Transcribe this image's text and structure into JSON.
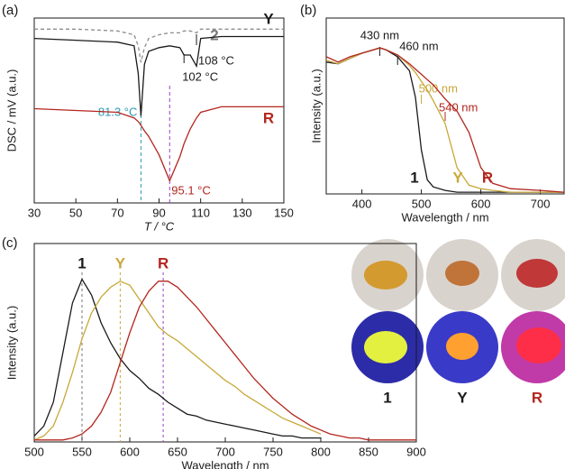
{
  "chart_data": [
    {
      "type": "line",
      "panel_label": "(a)",
      "xlabel": "T / °C",
      "ylabel": "DSC / mV (a.u.)",
      "xlim": [
        30,
        150
      ],
      "xticks": [
        30,
        50,
        70,
        90,
        110,
        130,
        150
      ],
      "ylim": [
        0,
        10
      ],
      "x": [
        30,
        50,
        70,
        78,
        80,
        81.3,
        83,
        85,
        90,
        95.1,
        100,
        102,
        105,
        108,
        110,
        120,
        150
      ],
      "series": [
        {
          "name": "2",
          "color": "#8c8c8c",
          "dashed": true,
          "values": [
            9.4,
            9.4,
            9.3,
            9.1,
            8.5,
            7.6,
            8.4,
            8.9,
            9.1,
            9.2,
            9.2,
            9.3,
            9.3,
            9.2,
            9.4,
            9.4,
            9.4
          ]
        },
        {
          "name": "Y",
          "color": "#1a1a1a",
          "dashed": false,
          "values": [
            8.9,
            8.8,
            8.7,
            8.5,
            7.0,
            4.7,
            7.5,
            8.2,
            8.4,
            8.5,
            8.4,
            8.0,
            8.0,
            7.4,
            8.9,
            9.0,
            9.0
          ]
        },
        {
          "name": "R",
          "color": "#b3261e",
          "dashed": false,
          "values": [
            5.1,
            5.0,
            4.9,
            4.6,
            4.4,
            4.2,
            3.9,
            3.6,
            2.6,
            1.2,
            2.5,
            3.2,
            4.0,
            4.6,
            4.9,
            5.2,
            5.2
          ]
        }
      ],
      "annotations": [
        {
          "text": "81.3 °C",
          "x": 81.3,
          "color": "#2a9bb5"
        },
        {
          "text": "95.1 °C",
          "x": 95.1,
          "color": "#b3261e",
          "line_color": "#9b3fc4"
        },
        {
          "text": "102 °C",
          "x": 102,
          "color": "#1a1a1a"
        },
        {
          "text": "108 °C",
          "x": 108,
          "color": "#1a1a1a"
        }
      ]
    },
    {
      "type": "line",
      "panel_label": "(b)",
      "xlabel": "Wavelength / nm",
      "ylabel": "Intensity (a.u.)",
      "xlim": [
        340,
        740
      ],
      "xticks": [
        400,
        500,
        600,
        700
      ],
      "ylim": [
        0,
        10
      ],
      "x": [
        340,
        360,
        380,
        400,
        420,
        430,
        440,
        460,
        480,
        490,
        500,
        510,
        520,
        540,
        560,
        580,
        600,
        620,
        650,
        700,
        740
      ],
      "series": [
        {
          "name": "1",
          "color": "#1a1a1a",
          "dashed": false,
          "values": [
            7.5,
            7.4,
            7.7,
            8.0,
            8.2,
            8.3,
            8.2,
            7.8,
            7.0,
            5.5,
            2.5,
            0.8,
            0.4,
            0.2,
            0.1,
            0.1,
            0.1,
            0.1,
            0.1,
            0.1,
            0.1
          ]
        },
        {
          "name": "Y",
          "color": "#c8a83a",
          "dashed": false,
          "values": [
            7.6,
            7.4,
            7.7,
            8.0,
            8.2,
            8.3,
            8.2,
            7.9,
            7.3,
            6.9,
            6.4,
            5.9,
            5.3,
            4.0,
            1.5,
            0.5,
            0.3,
            0.2,
            0.1,
            0.1,
            0.1
          ]
        },
        {
          "name": "R",
          "color": "#b3261e",
          "dashed": false,
          "values": [
            7.8,
            7.5,
            7.8,
            8.0,
            8.2,
            8.3,
            8.2,
            7.9,
            7.4,
            7.1,
            6.8,
            6.5,
            6.2,
            5.4,
            4.7,
            3.5,
            1.5,
            0.6,
            0.3,
            0.2,
            0.1
          ]
        }
      ],
      "annotations": [
        {
          "text": "430 nm",
          "x": 430,
          "color": "#1a1a1a"
        },
        {
          "text": "460 nm",
          "x": 460,
          "color": "#1a1a1a"
        },
        {
          "text": "500 nm",
          "x": 500,
          "color": "#c8a83a"
        },
        {
          "text": "540 nm",
          "x": 540,
          "color": "#b3261e"
        }
      ]
    },
    {
      "type": "line",
      "panel_label": "(c)",
      "xlabel": "Wavelength / nm",
      "ylabel": "Intensity (a.u.)",
      "xlim": [
        500,
        900
      ],
      "xticks": [
        500,
        550,
        600,
        650,
        700,
        750,
        800,
        850,
        900
      ],
      "ylim": [
        0,
        10
      ],
      "x": [
        500,
        510,
        520,
        530,
        540,
        550,
        560,
        570,
        580,
        590,
        600,
        610,
        620,
        630,
        640,
        650,
        660,
        670,
        680,
        690,
        700,
        710,
        720,
        730,
        740,
        750,
        760,
        770,
        780,
        790,
        800,
        810,
        820,
        830,
        840,
        850,
        860,
        870,
        880,
        890,
        900
      ],
      "series": [
        {
          "name": "1",
          "color": "#1a1a1a",
          "dashed": false,
          "values": [
            0.3,
            0.8,
            2.0,
            4.5,
            7.0,
            8.2,
            7.4,
            6.0,
            5.0,
            4.2,
            3.6,
            3.2,
            2.7,
            2.4,
            2.0,
            1.7,
            1.4,
            1.3,
            1.1,
            1.0,
            0.9,
            0.8,
            0.7,
            0.6,
            0.5,
            0.4,
            0.3,
            0.3,
            0.2,
            0.2,
            0.2,
            null,
            null,
            null,
            null,
            null,
            null,
            null,
            null,
            null,
            null
          ]
        },
        {
          "name": "Y",
          "color": "#c8a83a",
          "dashed": false,
          "values": [
            0.1,
            0.3,
            0.8,
            2.0,
            3.5,
            5.2,
            6.5,
            7.3,
            7.8,
            8.1,
            7.9,
            7.2,
            6.5,
            5.8,
            5.4,
            5.1,
            4.7,
            4.3,
            3.9,
            3.5,
            3.1,
            2.8,
            2.4,
            2.1,
            1.8,
            1.5,
            1.2,
            1.0,
            0.8,
            0.6,
            0.4,
            null,
            null,
            null,
            null,
            null,
            null,
            null,
            null,
            null,
            null
          ]
        },
        {
          "name": "R",
          "color": "#b3261e",
          "dashed": false,
          "values": [
            0.1,
            0.1,
            0.1,
            0.1,
            0.2,
            0.4,
            0.8,
            1.5,
            2.5,
            4.0,
            5.5,
            6.8,
            7.6,
            8.1,
            8.1,
            7.8,
            7.3,
            6.8,
            6.2,
            5.6,
            5.0,
            4.4,
            3.8,
            3.2,
            2.7,
            2.2,
            1.8,
            1.4,
            1.1,
            0.8,
            0.6,
            0.4,
            0.3,
            0.2,
            0.2,
            0.1,
            0.1,
            0.1,
            0.1,
            0.1,
            0.1
          ]
        }
      ],
      "markers": [
        {
          "x": 550,
          "color": "#777777"
        },
        {
          "x": 590,
          "color": "#c8a83a"
        },
        {
          "x": 635,
          "color": "#9b3fc4"
        }
      ]
    }
  ],
  "photos": {
    "labels": [
      "1",
      "Y",
      "R"
    ]
  }
}
